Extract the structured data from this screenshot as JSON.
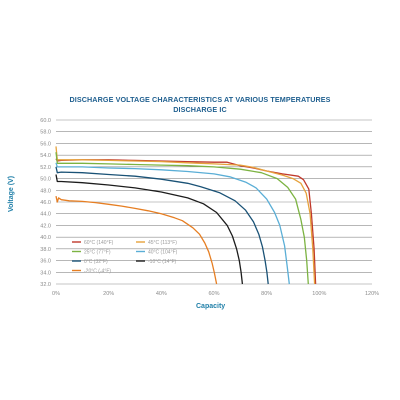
{
  "chart_data": {
    "type": "line",
    "title": "DISCHARGE VOLTAGE CHARACTERISTICS AT VARIOUS TEMPERATURES",
    "subtitle": "DISCHARGE IC",
    "xlabel": "Capacity",
    "ylabel": "Voltage (V)",
    "xlim": [
      0,
      120
    ],
    "ylim": [
      32,
      60
    ],
    "x_ticks": [
      0,
      20,
      40,
      60,
      80,
      100,
      120
    ],
    "x_tick_labels": [
      "0%",
      "20%",
      "40%",
      "60%",
      "80%",
      "100%",
      "120%"
    ],
    "y_ticks": [
      32,
      34,
      36,
      38,
      40,
      42,
      44,
      46,
      48,
      50,
      52,
      54,
      56,
      58,
      60
    ],
    "y_tick_labels": [
      "32.0",
      "34.0",
      "36.0",
      "38.0",
      "40.0",
      "42.0",
      "44.0",
      "46.0",
      "48.0",
      "50.0",
      "52.0",
      "54.0",
      "56.0",
      "58.0",
      "60.0"
    ],
    "grid": "horizontal",
    "legend_position": "bottom-left",
    "series": [
      {
        "name": "60°C (140°F)",
        "color": "#c0392b",
        "x": [
          0,
          0.5,
          2,
          10,
          20,
          30,
          40,
          50,
          60,
          65,
          70,
          75,
          80,
          86,
          92,
          94,
          96,
          97,
          98,
          98.6
        ],
        "y": [
          53.4,
          53.0,
          53.1,
          53.2,
          53.2,
          53.1,
          53.0,
          52.9,
          52.8,
          52.8,
          52.2,
          51.8,
          51.3,
          50.8,
          50.4,
          49.8,
          48.2,
          44,
          38,
          32
        ]
      },
      {
        "name": "45°C (113°F)",
        "color": "#e6a23c",
        "x": [
          0,
          0.5,
          2,
          10,
          20,
          30,
          40,
          50,
          60,
          70,
          75,
          80,
          86,
          90,
          93,
          95,
          96.5,
          97.5,
          98.2
        ],
        "y": [
          55.5,
          53.2,
          53.2,
          53.2,
          53.1,
          53.0,
          52.9,
          52.7,
          52.5,
          52.3,
          51.9,
          51.3,
          50.6,
          50.0,
          49.2,
          47.5,
          44,
          38,
          32
        ]
      },
      {
        "name": "25°C (77°F)",
        "color": "#7cb342",
        "x": [
          0,
          0.5,
          2,
          10,
          20,
          30,
          40,
          50,
          60,
          70,
          78,
          84,
          88,
          91,
          93,
          94.3,
          95.2,
          95.8
        ],
        "y": [
          54.5,
          52.6,
          52.6,
          52.6,
          52.5,
          52.4,
          52.3,
          52.2,
          52.0,
          51.6,
          51.0,
          50.0,
          48.5,
          46.5,
          43,
          40,
          36,
          32
        ]
      },
      {
        "name": "40°C (104°F)",
        "color": "#5aaed6",
        "x": [
          0,
          0.5,
          2,
          10,
          20,
          30,
          40,
          50,
          60,
          66,
          72,
          76,
          80,
          83,
          85,
          86.8,
          87.8,
          88.6
        ],
        "y": [
          52.7,
          52.0,
          52.0,
          52.0,
          51.8,
          51.7,
          51.5,
          51.2,
          50.8,
          50.3,
          49.4,
          48.4,
          46.5,
          44.2,
          42,
          38.5,
          35,
          32
        ]
      },
      {
        "name": "0°C (32°F)",
        "color": "#1a5276",
        "x": [
          0,
          0.5,
          2,
          10,
          20,
          30,
          40,
          50,
          55,
          62,
          68,
          72,
          75,
          77,
          78.4,
          79.4,
          80.1,
          80.6
        ],
        "y": [
          52.0,
          51.0,
          51.1,
          51.0,
          50.7,
          50.4,
          49.9,
          49.2,
          48.6,
          47.6,
          46.2,
          44.6,
          42.6,
          40.5,
          38.3,
          36,
          34,
          32
        ]
      },
      {
        "name": "-10°C (14°F)",
        "color": "#1c1c1c",
        "x": [
          0,
          0.5,
          2,
          10,
          20,
          30,
          40,
          50,
          56,
          61,
          65,
          67,
          68.6,
          69.6,
          70.3,
          70.8
        ],
        "y": [
          50.7,
          49.5,
          49.5,
          49.3,
          48.9,
          48.4,
          47.7,
          46.7,
          45.7,
          44.2,
          42.0,
          40.2,
          38.0,
          36,
          34,
          32
        ]
      },
      {
        "name": "-20°C (-4°F)",
        "color": "#e67e22",
        "x": [
          0,
          0.5,
          1,
          2,
          5,
          10,
          15,
          20,
          25,
          30,
          35,
          40,
          45,
          48,
          52,
          54.5,
          56.5,
          58,
          59.3,
          60.2,
          61
        ],
        "y": [
          47.0,
          46.0,
          46.7,
          46.4,
          46.2,
          46.1,
          45.9,
          45.6,
          45.3,
          44.9,
          44.5,
          44.0,
          43.3,
          42.8,
          41.6,
          40.5,
          39.0,
          37.5,
          35.5,
          33.8,
          32
        ]
      }
    ]
  }
}
